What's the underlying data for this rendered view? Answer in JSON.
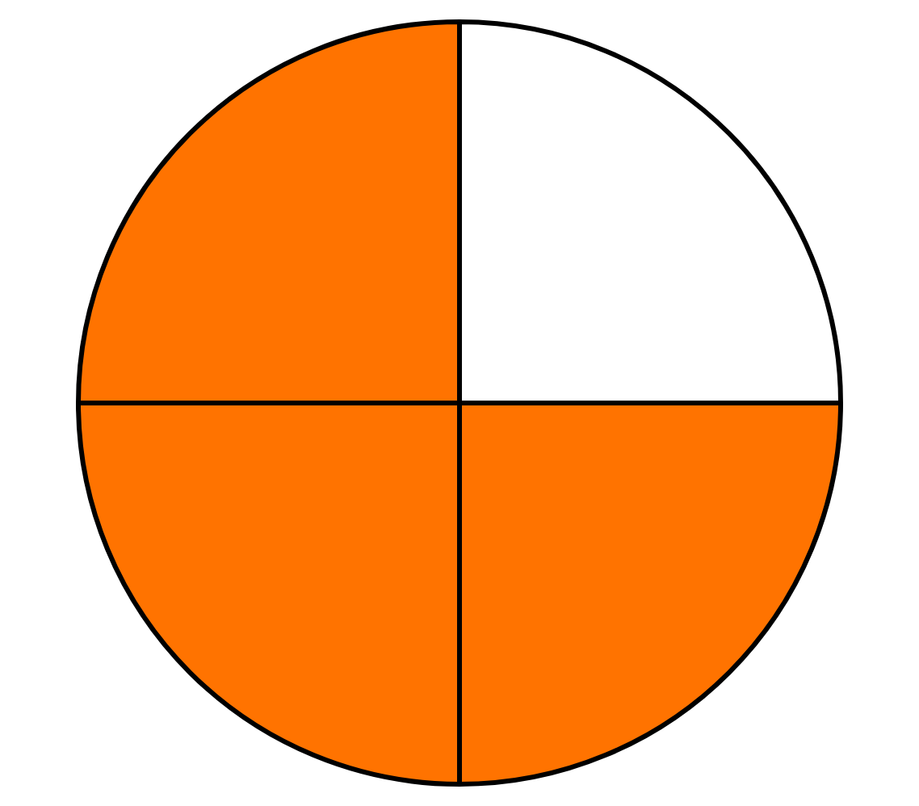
{
  "chart_data": {
    "type": "pie",
    "categories": [
      null,
      null,
      null,
      null
    ],
    "values": [
      25,
      25,
      25,
      25
    ],
    "colors": [
      "#ffffff",
      "#ff7300",
      "#ff7300",
      "#ff7300"
    ],
    "legend": false
  }
}
